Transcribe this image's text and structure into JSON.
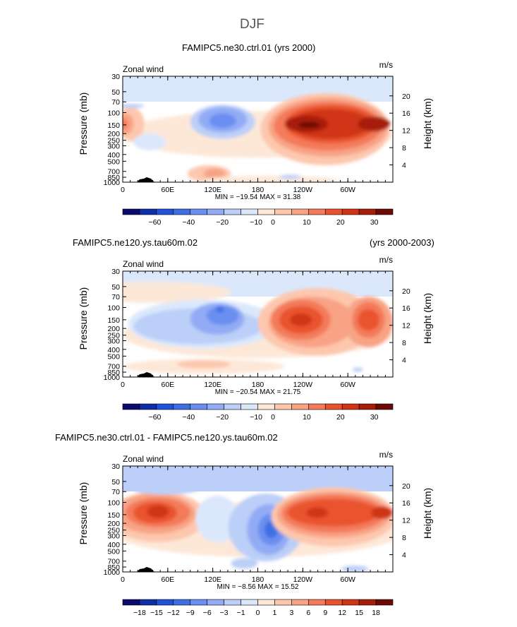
{
  "page": {
    "title": "DJF"
  },
  "panels": [
    {
      "title_left": "FAMIPC5.ne30.ctrl.01 (yrs 2000)",
      "title_right": "",
      "label_left": "Zonal wind",
      "label_right": "m/s",
      "stats": "MIN = −19.54   MAX =  31.38"
    },
    {
      "title_left": "FAMIPC5.ne120.ys.tau60m.02",
      "title_right": "(yrs 2000-2003)",
      "label_left": "Zonal wind",
      "label_right": "m/s",
      "stats": "MIN = −20.54   MAX =  21.75"
    },
    {
      "title_left": "FAMIPC5.ne30.ctrl.01 - FAMIPC5.ne120.ys.tau60m.02",
      "title_right": "",
      "label_left": "Zonal wind",
      "label_right": "m/s",
      "stats": "MIN =  −8.56   MAX =  15.52"
    }
  ],
  "axes": {
    "ylabel_left": "Pressure  (mb)",
    "ylabel_right": "Height  (km)",
    "pressure_ticks": [
      "30",
      "50",
      "70",
      "100",
      "150",
      "200",
      "250",
      "300",
      "400",
      "500",
      "700",
      "850",
      "1000"
    ],
    "height_ticks": [
      "20",
      "16",
      "12",
      "8",
      "4"
    ],
    "lon_ticks": [
      "0",
      "60E",
      "120E",
      "180",
      "120W",
      "60W"
    ]
  },
  "colorbars": [
    {
      "colors": [
        "#0a0a6e",
        "#0d2ea8",
        "#2152d6",
        "#3d6fe3",
        "#6a8ff0",
        "#93abf5",
        "#bccff8",
        "#dbe8fc",
        "#fde8d8",
        "#fdc7ae",
        "#f8a385",
        "#f37a5a",
        "#e9522f",
        "#cf3414",
        "#a81d0a",
        "#6d0a05"
      ],
      "labels": [
        "−60",
        "−40",
        "−20",
        "−10",
        "0",
        "10",
        "20",
        "30"
      ]
    },
    {
      "colors": [
        "#0a0a6e",
        "#0d2ea8",
        "#2152d6",
        "#3d6fe3",
        "#6a8ff0",
        "#93abf5",
        "#bccff8",
        "#dbe8fc",
        "#fde8d8",
        "#fdc7ae",
        "#f8a385",
        "#f37a5a",
        "#e9522f",
        "#cf3414",
        "#a81d0a",
        "#6d0a05"
      ],
      "labels": [
        "−60",
        "−40",
        "−20",
        "−10",
        "0",
        "10",
        "20",
        "30"
      ]
    },
    {
      "colors": [
        "#0a0a6e",
        "#0d2ea8",
        "#2152d6",
        "#3d6fe3",
        "#6a8ff0",
        "#93abf5",
        "#bccff8",
        "#dbe8fc",
        "#fde8d8",
        "#fdc7ae",
        "#f8a385",
        "#f37a5a",
        "#e9522f",
        "#cf3414",
        "#a81d0a",
        "#6d0a05"
      ],
      "labels": [
        "−18",
        "−15",
        "−12",
        "−9",
        "−6",
        "−3",
        "−1",
        "0",
        "1",
        "3",
        "6",
        "9",
        "12",
        "15",
        "18"
      ]
    }
  ],
  "chart_data": [
    {
      "type": "heatmap",
      "title": "FAMIPC5.ne30.ctrl.01 (yrs 2000)",
      "variable": "Zonal wind",
      "units": "m/s",
      "x": [
        "0",
        "60E",
        "120E",
        "180",
        "120W",
        "60W"
      ],
      "y_pressure_mb": [
        30,
        50,
        70,
        100,
        150,
        200,
        250,
        300,
        400,
        500,
        700,
        850,
        1000
      ],
      "min": -19.54,
      "max": 31.38
    },
    {
      "type": "heatmap",
      "title": "FAMIPC5.ne120.ys.tau60m.02 (yrs 2000-2003)",
      "variable": "Zonal wind",
      "units": "m/s",
      "x": [
        "0",
        "60E",
        "120E",
        "180",
        "120W",
        "60W"
      ],
      "y_pressure_mb": [
        30,
        50,
        70,
        100,
        150,
        200,
        250,
        300,
        400,
        500,
        700,
        850,
        1000
      ],
      "min": -20.54,
      "max": 21.75
    },
    {
      "type": "heatmap",
      "title": "FAMIPC5.ne30.ctrl.01 - FAMIPC5.ne120.ys.tau60m.02",
      "variable": "Zonal wind",
      "units": "m/s",
      "x": [
        "0",
        "60E",
        "120E",
        "180",
        "120W",
        "60W"
      ],
      "y_pressure_mb": [
        30,
        50,
        70,
        100,
        150,
        200,
        250,
        300,
        400,
        500,
        700,
        850,
        1000
      ],
      "min": -8.56,
      "max": 15.52
    }
  ]
}
